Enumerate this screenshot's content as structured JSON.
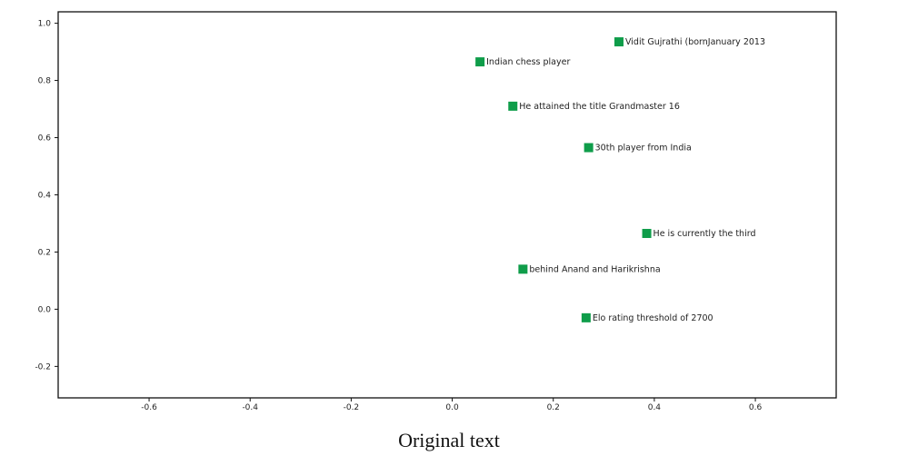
{
  "chart_data": {
    "type": "scatter",
    "title": "",
    "xlabel": "",
    "ylabel": "",
    "xlim": [
      -0.78,
      0.76
    ],
    "ylim": [
      -0.31,
      1.04
    ],
    "x_ticks": [
      "-0.6",
      "-0.4",
      "-0.2",
      "0.0",
      "0.2",
      "0.4",
      "0.6"
    ],
    "x_tick_values": [
      -0.6,
      -0.4,
      -0.2,
      0.0,
      0.2,
      0.4,
      0.6
    ],
    "y_ticks": [
      "1.0",
      "0.8",
      "0.6",
      "0.4",
      "0.2",
      "0.0",
      "-0.2"
    ],
    "y_tick_values": [
      1.0,
      0.8,
      0.6,
      0.4,
      0.2,
      0.0,
      -0.2
    ],
    "grid": false,
    "marker_color": "#0f9d4a",
    "points": [
      {
        "x": 0.33,
        "y": 0.935,
        "label": "Vidit Gujrathi (bornJanuary 2013"
      },
      {
        "x": 0.055,
        "y": 0.865,
        "label": "Indian chess player"
      },
      {
        "x": 0.12,
        "y": 0.71,
        "label": "He attained the title Grandmaster 16"
      },
      {
        "x": 0.27,
        "y": 0.565,
        "label": "30th player from India"
      },
      {
        "x": 0.385,
        "y": 0.265,
        "label": "He is currently the third"
      },
      {
        "x": 0.14,
        "y": 0.14,
        "label": "behind Anand and Harikrishna"
      },
      {
        "x": 0.265,
        "y": -0.03,
        "label": "Elo rating threshold of 2700"
      }
    ]
  },
  "caption": "Original text"
}
